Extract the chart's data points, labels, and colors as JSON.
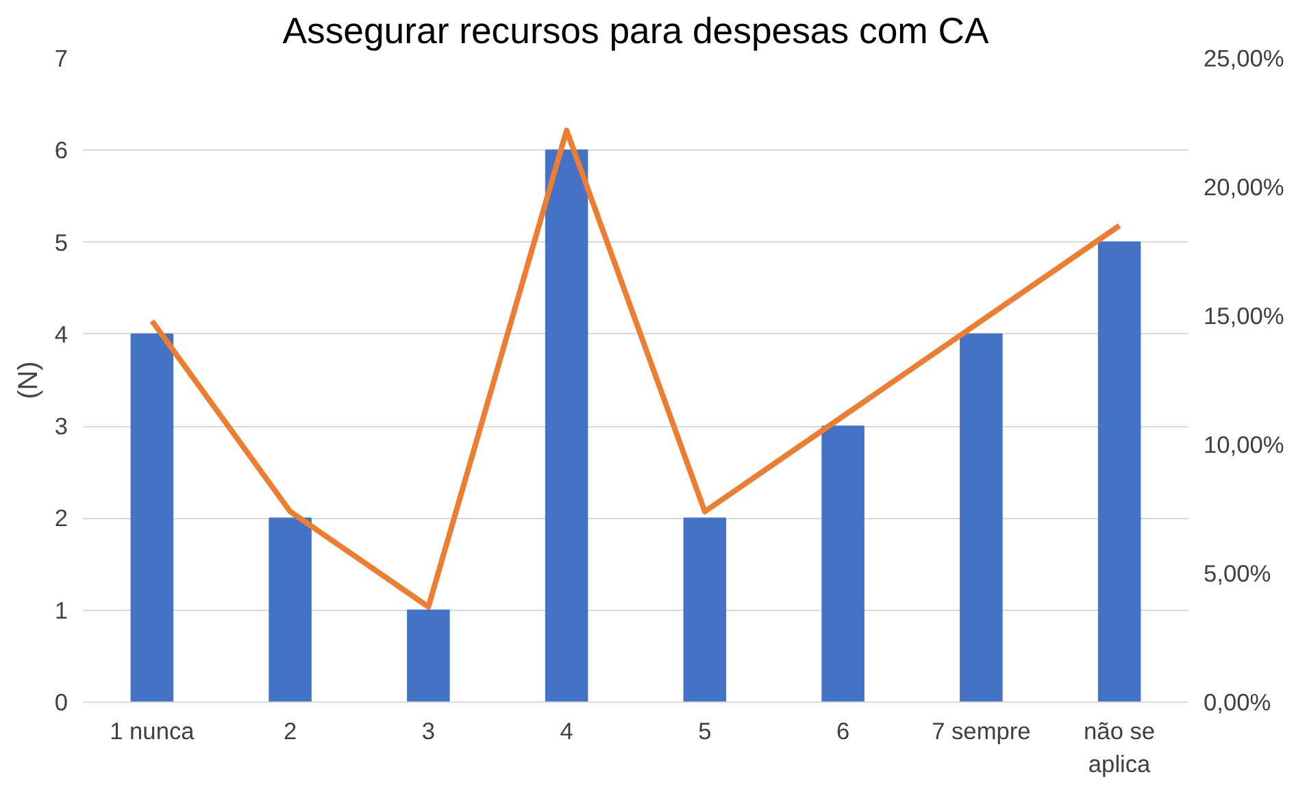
{
  "chart_data": {
    "type": "bar",
    "title": "Assegurar recursos para despesas com CA",
    "ylabel": "(N)",
    "categories": [
      "1 nunca",
      "2",
      "3",
      "4",
      "5",
      "6",
      "7 sempre",
      "não se aplica"
    ],
    "series": [
      {
        "color": "#4472c4",
        "values": [
          4,
          2,
          1,
          6,
          2,
          3,
          4,
          5
        ]
      },
      {
        "type": "line",
        "axis": "y2",
        "color": "#ed7d31",
        "values": [
          14.8,
          7.4,
          3.7,
          22.2,
          7.4,
          11.1,
          14.8,
          18.5
        ]
      }
    ],
    "ylim": [
      0,
      7
    ],
    "yticks": [
      0,
      1,
      2,
      3,
      4,
      5,
      6,
      7
    ],
    "y2lim": [
      0,
      25
    ],
    "y2ticks": [
      {
        "value": 0,
        "label": "0,00%"
      },
      {
        "value": 5,
        "label": "5,00%"
      },
      {
        "value": 10,
        "label": "10,00%"
      },
      {
        "value": 15,
        "label": "15,00%"
      },
      {
        "value": 20,
        "label": "20,00%"
      },
      {
        "value": 25,
        "label": "25,00%"
      }
    ],
    "grid": "y"
  }
}
